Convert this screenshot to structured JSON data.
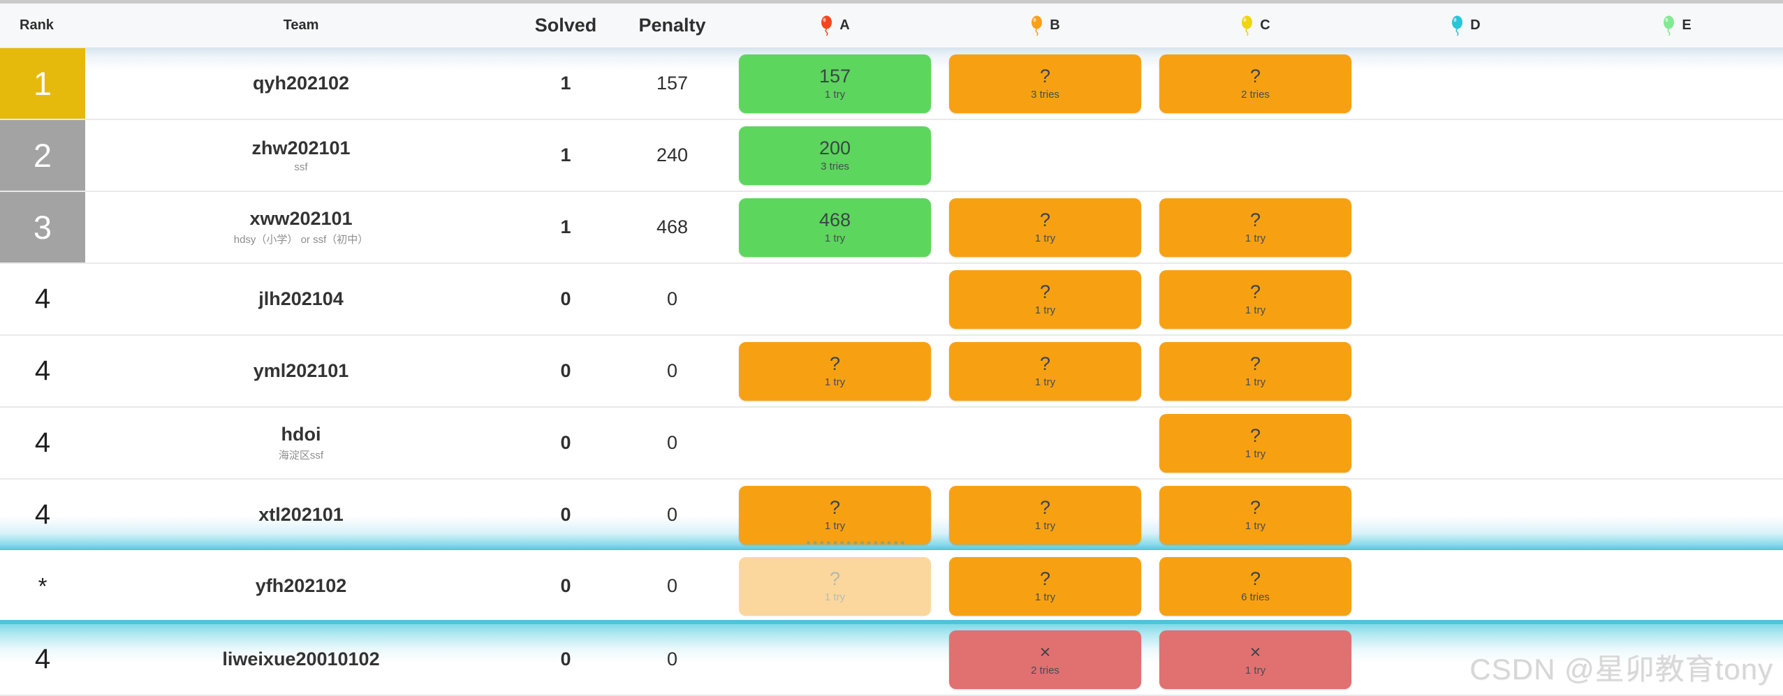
{
  "header": {
    "rank_label": "Rank",
    "team_label": "Team",
    "solved_label": "Solved",
    "penalty_label": "Penalty",
    "problems": [
      {
        "label": "A",
        "balloon_color": "#f4461d"
      },
      {
        "label": "B",
        "balloon_color": "#f9a11b"
      },
      {
        "label": "C",
        "balloon_color": "#f0d40f"
      },
      {
        "label": "D",
        "balloon_color": "#29c5d8"
      },
      {
        "label": "E",
        "balloon_color": "#82ea92"
      }
    ]
  },
  "colors": {
    "solved_cell": "#5cd65c",
    "tried_cell": "#f7a112",
    "failed_cell": "#e17070",
    "pending_cell": "#fbd79d",
    "rank_first_badge": "#e5ba0c",
    "rank_medal_badge": "#a3a3a3",
    "highlight_glow": "#4ec4d7"
  },
  "rows": [
    {
      "rank": "1",
      "badge": "gold",
      "team": "qyh202102",
      "subtitle": "",
      "solved": "1",
      "penalty": "157",
      "glow": "first",
      "cells": [
        {
          "state": "solved",
          "main": "157",
          "sub": "1 try"
        },
        {
          "state": "tried",
          "main": "?",
          "sub": "3 tries"
        },
        {
          "state": "tried",
          "main": "?",
          "sub": "2 tries"
        },
        null,
        null
      ]
    },
    {
      "rank": "2",
      "badge": "silver",
      "team": "zhw202101",
      "subtitle": "ssf",
      "solved": "1",
      "penalty": "240",
      "glow": null,
      "cells": [
        {
          "state": "solved",
          "main": "200",
          "sub": "3 tries"
        },
        null,
        null,
        null,
        null
      ]
    },
    {
      "rank": "3",
      "badge": "silver",
      "team": "xww202101",
      "subtitle": "hdsy（小学） or ssf（初中）",
      "solved": "1",
      "penalty": "468",
      "glow": null,
      "cells": [
        {
          "state": "solved",
          "main": "468",
          "sub": "1 try"
        },
        {
          "state": "tried",
          "main": "?",
          "sub": "1 try"
        },
        {
          "state": "tried",
          "main": "?",
          "sub": "1 try"
        },
        null,
        null
      ]
    },
    {
      "rank": "4",
      "badge": null,
      "team": "jlh202104",
      "subtitle": "",
      "solved": "0",
      "penalty": "0",
      "glow": null,
      "cells": [
        null,
        {
          "state": "tried",
          "main": "?",
          "sub": "1 try"
        },
        {
          "state": "tried",
          "main": "?",
          "sub": "1 try"
        },
        null,
        null
      ]
    },
    {
      "rank": "4",
      "badge": null,
      "team": "yml202101",
      "subtitle": "",
      "solved": "0",
      "penalty": "0",
      "glow": null,
      "cells": [
        {
          "state": "tried",
          "main": "?",
          "sub": "1 try"
        },
        {
          "state": "tried",
          "main": "?",
          "sub": "1 try"
        },
        {
          "state": "tried",
          "main": "?",
          "sub": "1 try"
        },
        null,
        null
      ]
    },
    {
      "rank": "4",
      "badge": null,
      "team": "hdoi",
      "subtitle": "海淀区ssf",
      "solved": "0",
      "penalty": "0",
      "glow": null,
      "cells": [
        null,
        null,
        {
          "state": "tried",
          "main": "?",
          "sub": "1 try"
        },
        null,
        null
      ]
    },
    {
      "rank": "4",
      "badge": null,
      "team": "xtl202101",
      "subtitle": "",
      "solved": "0",
      "penalty": "0",
      "glow": "bottom",
      "cells": [
        {
          "state": "tried",
          "main": "?",
          "sub": "1 try"
        },
        {
          "state": "tried",
          "main": "?",
          "sub": "1 try"
        },
        {
          "state": "tried",
          "main": "?",
          "sub": "1 try"
        },
        null,
        null
      ]
    },
    {
      "rank": "*",
      "badge": null,
      "team": "yfh202102",
      "subtitle": "",
      "solved": "0",
      "penalty": "0",
      "glow": "underline",
      "cells": [
        {
          "state": "pending",
          "main": "?",
          "sub": "1 try"
        },
        {
          "state": "tried",
          "main": "?",
          "sub": "1 try"
        },
        {
          "state": "tried",
          "main": "?",
          "sub": "6 tries"
        },
        null,
        null
      ]
    },
    {
      "rank": "4",
      "badge": null,
      "team": "liweixue20010102",
      "subtitle": "",
      "solved": "0",
      "penalty": "0",
      "glow": "top",
      "cells": [
        null,
        {
          "state": "failed",
          "main": "×",
          "sub": "2 tries"
        },
        {
          "state": "failed",
          "main": "×",
          "sub": "1 try"
        },
        null,
        null
      ]
    }
  ],
  "watermark": "CSDN @星卯教育tony"
}
